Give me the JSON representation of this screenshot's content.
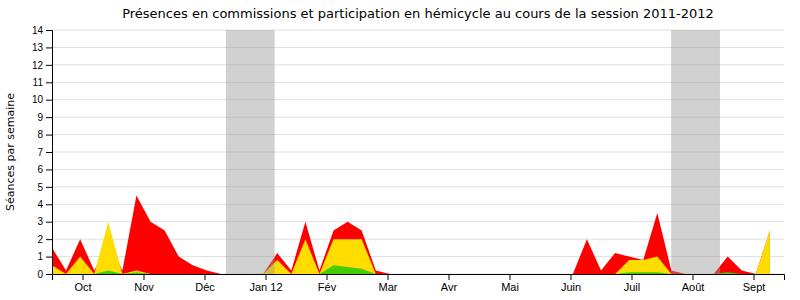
{
  "chart_data": {
    "type": "area",
    "title": "Présences en commissions et participation en hémicycle au cours de la session 2011-2012",
    "y_label": "Séances par semaine",
    "x": [
      0,
      1,
      2,
      3,
      4,
      5,
      6,
      7,
      8,
      9,
      10,
      11,
      12,
      13,
      14,
      15,
      16,
      17,
      18,
      19,
      20,
      21,
      22,
      23,
      24,
      25,
      26,
      27,
      28,
      29,
      30,
      31,
      32,
      33,
      34,
      35,
      36,
      37,
      38,
      39,
      40,
      41,
      42,
      43,
      44,
      45,
      46,
      47,
      48,
      49,
      50,
      51
    ],
    "xlim": [
      0,
      52
    ],
    "xticks": [
      {
        "value": 2.1666666666666665,
        "label": "Oct"
      },
      {
        "value": 6.5,
        "label": "Nov"
      },
      {
        "value": 10.833333333333334,
        "label": "Déc"
      },
      {
        "value": 15.166666666666666,
        "label": "Jan 12"
      },
      {
        "value": 19.5,
        "label": "Fév"
      },
      {
        "value": 23.833333333333332,
        "label": "Mar"
      },
      {
        "value": 28.166666666666668,
        "label": "Avr"
      },
      {
        "value": 32.5,
        "label": "Mai"
      },
      {
        "value": 36.833333333333336,
        "label": "Juin"
      },
      {
        "value": 41.166666666666664,
        "label": "Juil"
      },
      {
        "value": 45.5,
        "label": "Août"
      },
      {
        "value": 49.833333333333336,
        "label": "Sept"
      }
    ],
    "ylim": [
      0,
      14
    ],
    "yticks": [
      0,
      1,
      2,
      3,
      4,
      5,
      6,
      7,
      8,
      9,
      10,
      11,
      12,
      13,
      14
    ],
    "grid": true,
    "bands": [
      [
        12.35,
        15.816666666666666
      ],
      [
        43.983333333333334,
        47.45
      ]
    ],
    "series": [
      {
        "color": "#ff0000",
        "values": [
          1.5,
          0.2,
          2.0,
          0.2,
          1.8,
          0.2,
          4.5,
          3.0,
          2.5,
          1.0,
          0.5,
          0.2,
          0.0,
          0.0,
          0.0,
          0.0,
          1.2,
          0.2,
          3.0,
          0.2,
          2.5,
          3.0,
          2.5,
          0.2,
          0.0,
          0.0,
          0.0,
          0.0,
          0.0,
          0.0,
          0.0,
          0.0,
          0.0,
          0.0,
          0.0,
          0.0,
          0.0,
          0.0,
          2.0,
          0.2,
          1.2,
          1.0,
          0.8,
          3.5,
          0.2,
          0.0,
          0.0,
          0.0,
          1.0,
          0.2,
          0.0,
          2.5
        ]
      },
      {
        "color": "#ffdd00",
        "values": [
          0.5,
          0.0,
          1.0,
          0.0,
          3.0,
          0.0,
          0.2,
          0.0,
          0.0,
          0.0,
          0.0,
          0.0,
          0.0,
          0.0,
          0.0,
          0.0,
          0.8,
          0.0,
          2.0,
          0.0,
          2.0,
          2.0,
          2.0,
          0.0,
          0.0,
          0.0,
          0.0,
          0.0,
          0.0,
          0.0,
          0.0,
          0.0,
          0.0,
          0.0,
          0.0,
          0.0,
          0.0,
          0.0,
          0.0,
          0.0,
          0.0,
          0.8,
          0.8,
          1.0,
          0.0,
          0.0,
          0.0,
          0.0,
          0.0,
          0.0,
          0.0,
          2.5
        ]
      },
      {
        "color": "#44cc00",
        "values": [
          0.0,
          0.0,
          0.0,
          0.0,
          0.2,
          0.0,
          0.1,
          0.0,
          0.0,
          0.0,
          0.0,
          0.0,
          0.0,
          0.0,
          0.0,
          0.0,
          0.0,
          0.0,
          0.0,
          0.0,
          0.5,
          0.4,
          0.3,
          0.0,
          0.0,
          0.0,
          0.0,
          0.0,
          0.0,
          0.0,
          0.0,
          0.0,
          0.0,
          0.0,
          0.0,
          0.0,
          0.0,
          0.0,
          0.0,
          0.0,
          0.0,
          0.1,
          0.1,
          0.1,
          0.0,
          0.0,
          0.0,
          0.0,
          0.1,
          0.0,
          0.0,
          0.0
        ]
      }
    ]
  }
}
